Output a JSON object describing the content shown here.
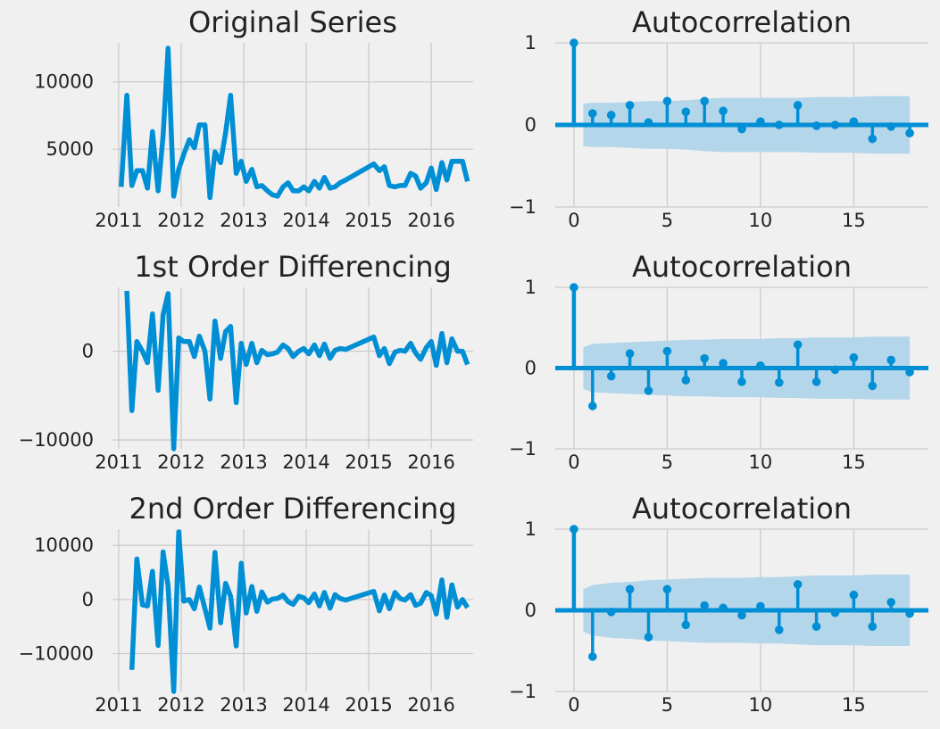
{
  "colors": {
    "line": "#008fd5",
    "band": "#b4d6eb",
    "grid": "#cbcbcb",
    "background": "#f0f0f0",
    "text": "#222222"
  },
  "chart_data": [
    {
      "type": "line",
      "title": "Original Series",
      "xlabel": "",
      "ylabel": "",
      "xlim": [
        2010.9,
        2016.67
      ],
      "ylim": [
        700,
        12900
      ],
      "xticks": [
        2011,
        2012,
        2013,
        2014,
        2015,
        2016
      ],
      "yticks": [
        5000,
        10000
      ],
      "grid": true,
      "series": [
        {
          "x": [
            2011.04,
            2011.13,
            2011.21,
            2011.29,
            2011.38,
            2011.46,
            2011.54,
            2011.63,
            2011.71,
            2011.79,
            2011.88,
            2011.96,
            2012.04,
            2012.13,
            2012.21,
            2012.29,
            2012.38,
            2012.46,
            2012.54,
            2012.63,
            2012.71,
            2012.79,
            2012.88,
            2012.96,
            2013.04,
            2013.13,
            2013.21,
            2013.29,
            2013.38,
            2013.46,
            2013.54,
            2013.63,
            2013.71,
            2013.79,
            2013.88,
            2013.96,
            2014.04,
            2014.13,
            2014.21,
            2014.29,
            2014.38,
            2014.46,
            2014.54,
            2014.63,
            2015.08,
            2015.17,
            2015.25,
            2015.33,
            2015.42,
            2015.5,
            2015.58,
            2015.67,
            2015.75,
            2015.83,
            2015.92,
            2016.0,
            2016.08,
            2016.17,
            2016.25,
            2016.33,
            2016.42,
            2016.5,
            2016.58
          ],
          "y": [
            2200,
            9000,
            2300,
            3400,
            3400,
            2100,
            6300,
            1900,
            6000,
            12500,
            1500,
            3500,
            4600,
            5700,
            5100,
            6800,
            6800,
            1400,
            4800,
            4000,
            6200,
            9000,
            3200,
            4100,
            2600,
            3500,
            2200,
            2300,
            1900,
            1600,
            1500,
            2200,
            2500,
            1900,
            1900,
            2200,
            1900,
            2600,
            2100,
            2900,
            2100,
            2200,
            2500,
            2700,
            3900,
            3400,
            3700,
            2300,
            2200,
            2300,
            2300,
            3200,
            3000,
            2100,
            2500,
            3600,
            2000,
            4000,
            2700,
            4100,
            4100,
            4100,
            2600
          ]
        }
      ]
    },
    {
      "type": "bar",
      "title": "Autocorrelation",
      "xlabel": "",
      "ylabel": "",
      "xlim": [
        -1,
        19
      ],
      "ylim": [
        -1,
        1
      ],
      "xticks": [
        0,
        5,
        10,
        15
      ],
      "yticks": [
        -1,
        0,
        1
      ],
      "grid": true,
      "lags": [
        0,
        1,
        2,
        3,
        4,
        5,
        6,
        7,
        8,
        9,
        10,
        11,
        12,
        13,
        14,
        15,
        16,
        17,
        18
      ],
      "values": [
        1.0,
        0.14,
        0.12,
        0.24,
        0.03,
        0.29,
        0.16,
        0.29,
        0.17,
        -0.05,
        0.04,
        0.0,
        0.24,
        -0.01,
        0.0,
        0.04,
        -0.17,
        -0.02,
        -0.1
      ],
      "confidence_upper": [
        0.26,
        0.27,
        0.27,
        0.28,
        0.29,
        0.29,
        0.3,
        0.32,
        0.33,
        0.33,
        0.33,
        0.33,
        0.33,
        0.34,
        0.34,
        0.34,
        0.35,
        0.35,
        0.35
      ],
      "confidence_lower": [
        -0.26,
        -0.27,
        -0.27,
        -0.28,
        -0.29,
        -0.29,
        -0.3,
        -0.32,
        -0.33,
        -0.33,
        -0.33,
        -0.33,
        -0.33,
        -0.34,
        -0.34,
        -0.34,
        -0.35,
        -0.35,
        -0.35
      ]
    },
    {
      "type": "line",
      "title": "1st Order Differencing",
      "xlabel": "",
      "ylabel": "",
      "xlim": [
        2010.9,
        2016.67
      ],
      "ylim": [
        -11000,
        7200
      ],
      "xticks": [
        2011,
        2012,
        2013,
        2014,
        2015,
        2016
      ],
      "yticks": [
        -10000,
        0
      ],
      "grid": true,
      "series": [
        {
          "x": [
            2011.13,
            2011.21,
            2011.29,
            2011.38,
            2011.46,
            2011.54,
            2011.63,
            2011.71,
            2011.79,
            2011.88,
            2011.96,
            2012.04,
            2012.13,
            2012.21,
            2012.29,
            2012.38,
            2012.46,
            2012.54,
            2012.63,
            2012.71,
            2012.79,
            2012.88,
            2012.96,
            2013.04,
            2013.13,
            2013.21,
            2013.29,
            2013.38,
            2013.46,
            2013.54,
            2013.63,
            2013.71,
            2013.79,
            2013.88,
            2013.96,
            2014.04,
            2014.13,
            2014.21,
            2014.29,
            2014.38,
            2014.46,
            2014.54,
            2014.63,
            2015.08,
            2015.17,
            2015.25,
            2015.33,
            2015.42,
            2015.5,
            2015.58,
            2015.67,
            2015.75,
            2015.83,
            2015.92,
            2016.0,
            2016.08,
            2016.17,
            2016.25,
            2016.33,
            2016.42,
            2016.5,
            2016.58
          ],
          "y": [
            6800,
            -6700,
            1100,
            0,
            -1300,
            4200,
            -4400,
            4100,
            6500,
            -11000,
            1500,
            1100,
            1100,
            -600,
            1700,
            0,
            -5400,
            3400,
            -800,
            2200,
            2800,
            -5800,
            900,
            -1500,
            900,
            -1300,
            100,
            -400,
            -300,
            -100,
            700,
            300,
            -600,
            0,
            300,
            -300,
            700,
            -500,
            800,
            -800,
            100,
            300,
            200,
            1600,
            -500,
            300,
            -1400,
            -100,
            100,
            0,
            900,
            -200,
            -900,
            400,
            1100,
            -1600,
            2000,
            -1300,
            1400,
            0,
            0,
            -1500
          ]
        }
      ]
    },
    {
      "type": "bar",
      "title": "Autocorrelation",
      "xlabel": "",
      "ylabel": "",
      "xlim": [
        -1,
        19
      ],
      "ylim": [
        -1,
        1
      ],
      "xticks": [
        0,
        5,
        10,
        15
      ],
      "yticks": [
        -1,
        0,
        1
      ],
      "grid": true,
      "lags": [
        0,
        1,
        2,
        3,
        4,
        5,
        6,
        7,
        8,
        9,
        10,
        11,
        12,
        13,
        14,
        15,
        16,
        17,
        18
      ],
      "values": [
        1.0,
        -0.47,
        -0.1,
        0.18,
        -0.28,
        0.21,
        -0.15,
        0.12,
        0.06,
        -0.17,
        0.03,
        -0.18,
        0.29,
        -0.17,
        -0.02,
        0.13,
        -0.22,
        0.1,
        -0.05
      ],
      "confidence_upper": [
        0.26,
        0.3,
        0.31,
        0.32,
        0.33,
        0.34,
        0.35,
        0.35,
        0.36,
        0.36,
        0.36,
        0.37,
        0.37,
        0.38,
        0.38,
        0.38,
        0.39,
        0.39,
        0.39
      ],
      "confidence_lower": [
        -0.26,
        -0.3,
        -0.31,
        -0.32,
        -0.33,
        -0.34,
        -0.35,
        -0.35,
        -0.36,
        -0.36,
        -0.36,
        -0.37,
        -0.37,
        -0.38,
        -0.38,
        -0.38,
        -0.39,
        -0.39,
        -0.39
      ]
    },
    {
      "type": "line",
      "title": "2nd Order Differencing",
      "xlabel": "",
      "ylabel": "",
      "xlim": [
        2010.9,
        2016.67
      ],
      "ylim": [
        -17000,
        13000
      ],
      "xticks": [
        2011,
        2012,
        2013,
        2014,
        2015,
        2016
      ],
      "yticks": [
        -10000,
        0,
        10000
      ],
      "grid": true,
      "series": [
        {
          "x": [
            2011.21,
            2011.29,
            2011.38,
            2011.46,
            2011.54,
            2011.63,
            2011.71,
            2011.79,
            2011.88,
            2011.96,
            2012.04,
            2012.13,
            2012.21,
            2012.29,
            2012.38,
            2012.46,
            2012.54,
            2012.63,
            2012.71,
            2012.79,
            2012.88,
            2012.96,
            2013.04,
            2013.13,
            2013.21,
            2013.29,
            2013.38,
            2013.46,
            2013.54,
            2013.63,
            2013.71,
            2013.79,
            2013.88,
            2013.96,
            2014.04,
            2014.13,
            2014.21,
            2014.29,
            2014.38,
            2014.46,
            2014.54,
            2014.63,
            2015.08,
            2015.17,
            2015.25,
            2015.33,
            2015.42,
            2015.5,
            2015.58,
            2015.67,
            2015.75,
            2015.83,
            2015.92,
            2016.0,
            2016.08,
            2016.17,
            2016.25,
            2016.33,
            2016.42,
            2016.5,
            2016.58
          ],
          "y": [
            -13000,
            7500,
            -1000,
            -1200,
            5200,
            -8500,
            8800,
            2500,
            -17000,
            12500,
            -300,
            0,
            -1700,
            2300,
            -1700,
            -5300,
            8700,
            -4300,
            3000,
            600,
            -8600,
            6700,
            -2500,
            2400,
            -2200,
            1400,
            -500,
            100,
            200,
            800,
            -400,
            -900,
            600,
            300,
            -600,
            1000,
            -1200,
            1300,
            -1600,
            900,
            200,
            -100,
            1500,
            -2100,
            800,
            -1700,
            1300,
            200,
            -100,
            900,
            -1100,
            -700,
            1300,
            700,
            -2700,
            3600,
            -3300,
            2700,
            -1400,
            0,
            -1500
          ]
        }
      ]
    },
    {
      "type": "bar",
      "title": "Autocorrelation",
      "xlabel": "",
      "ylabel": "",
      "xlim": [
        -1,
        19
      ],
      "ylim": [
        -1,
        1
      ],
      "xticks": [
        0,
        5,
        10,
        15
      ],
      "yticks": [
        -1,
        0,
        1
      ],
      "grid": true,
      "lags": [
        0,
        1,
        2,
        3,
        4,
        5,
        6,
        7,
        8,
        9,
        10,
        11,
        12,
        13,
        14,
        15,
        16,
        17,
        18
      ],
      "values": [
        1.0,
        -0.57,
        -0.02,
        0.26,
        -0.33,
        0.26,
        -0.18,
        0.06,
        0.03,
        -0.06,
        0.05,
        -0.24,
        0.32,
        -0.2,
        -0.03,
        0.19,
        -0.2,
        0.1,
        -0.04
      ],
      "confidence_upper": [
        0.26,
        0.31,
        0.34,
        0.35,
        0.37,
        0.38,
        0.39,
        0.4,
        0.4,
        0.4,
        0.41,
        0.41,
        0.42,
        0.43,
        0.43,
        0.43,
        0.44,
        0.44,
        0.44
      ],
      "confidence_lower": [
        -0.26,
        -0.31,
        -0.34,
        -0.35,
        -0.37,
        -0.38,
        -0.39,
        -0.4,
        -0.4,
        -0.4,
        -0.41,
        -0.41,
        -0.42,
        -0.43,
        -0.43,
        -0.43,
        -0.44,
        -0.44,
        -0.44
      ]
    }
  ]
}
